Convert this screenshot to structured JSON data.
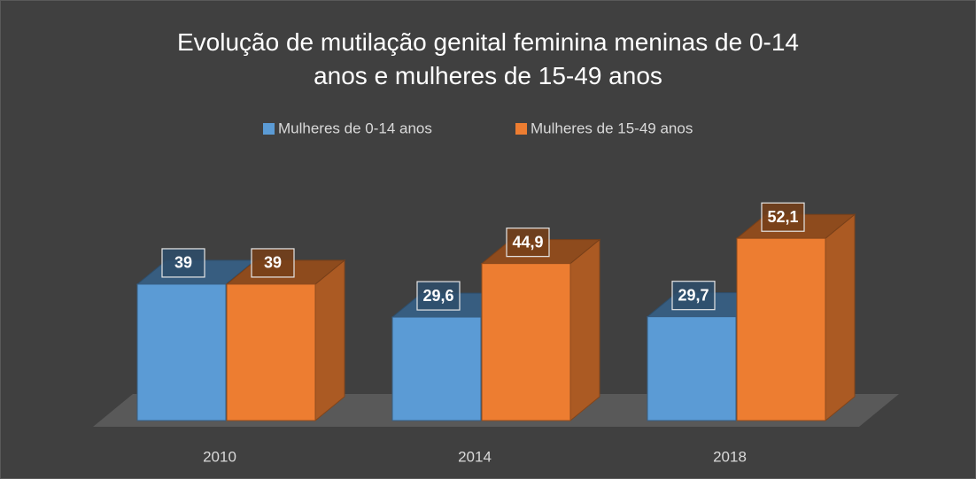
{
  "chart_data": {
    "type": "bar3d",
    "title": "Evolução de mutilação genital feminina meninas de 0-14 anos e mulheres de 15-49 anos",
    "categories": [
      "2010",
      "2014",
      "2018"
    ],
    "series": [
      {
        "name": "Mulheres de 0-14 anos",
        "color": "#5b9bd5",
        "values": [
          39,
          29.6,
          29.7
        ],
        "value_labels": [
          "39",
          "29,6",
          "29,7"
        ]
      },
      {
        "name": "Mulheres de 15-49 anos",
        "color": "#ed7d31",
        "values": [
          39,
          44.9,
          52.1
        ],
        "value_labels": [
          "39",
          "44,9",
          "52,1"
        ]
      }
    ]
  }
}
